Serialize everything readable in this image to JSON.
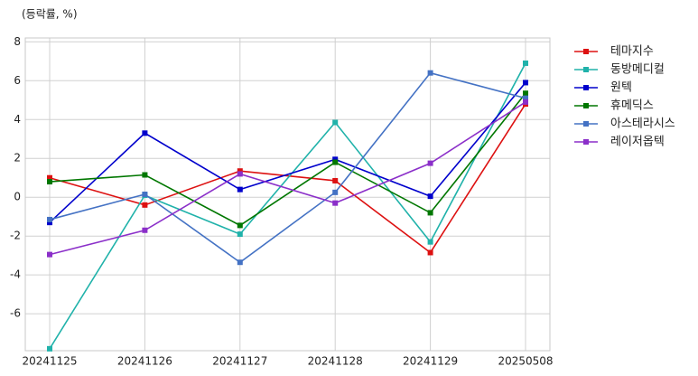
{
  "chart_data": {
    "type": "line",
    "ylabel": "(등락률, %)",
    "categories": [
      "20241125",
      "20241126",
      "20241127",
      "20241128",
      "20241129",
      "20250508"
    ],
    "series": [
      {
        "name": "테마지수",
        "color": "#dd1111",
        "values": [
          1.0,
          -0.4,
          1.35,
          0.85,
          -2.85,
          4.8
        ]
      },
      {
        "name": "동방메디컬",
        "color": "#20b2aa",
        "values": [
          -7.8,
          0.1,
          -1.9,
          3.85,
          -2.3,
          6.9
        ]
      },
      {
        "name": "원텍",
        "color": "#0000cc",
        "values": [
          -1.3,
          3.3,
          0.4,
          1.95,
          0.05,
          5.9
        ]
      },
      {
        "name": "휴메딕스",
        "color": "#007700",
        "values": [
          0.8,
          1.15,
          -1.45,
          1.8,
          -0.8,
          5.35
        ]
      },
      {
        "name": "아스테라시스",
        "color": "#4472c4",
        "values": [
          -1.15,
          0.15,
          -3.35,
          0.25,
          6.4,
          5.1
        ]
      },
      {
        "name": "레이저옵텍",
        "color": "#8b2fc9",
        "values": [
          -2.95,
          -1.7,
          1.2,
          -0.3,
          1.75,
          4.9
        ]
      }
    ],
    "ylim": [
      -7.9,
      8.2
    ],
    "yticks": [
      -6,
      -4,
      -2,
      0,
      2,
      4,
      6,
      8
    ],
    "grid": true,
    "legend": "upper right outside"
  }
}
